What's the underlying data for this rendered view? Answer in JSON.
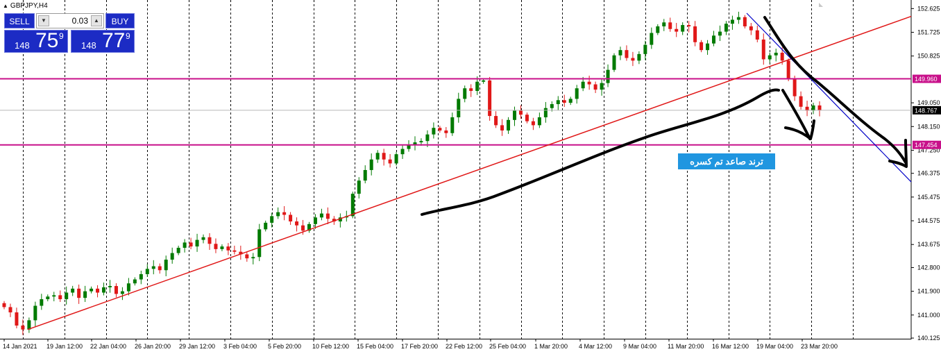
{
  "chart_data": {
    "type": "candlestick",
    "title": "GBPJPY,H4",
    "y_ticks": [
      "152.625",
      "151.725",
      "150.825",
      "149.050",
      "148.150",
      "147.250",
      "146.375",
      "145.475",
      "144.575",
      "143.675",
      "142.800",
      "141.900",
      "141.000",
      "140.125"
    ],
    "x_ticks": [
      "14 Jan 2021",
      "19 Jan 12:00",
      "22 Jan 04:00",
      "26 Jan 20:00",
      "29 Jan 12:00",
      "3 Feb 04:00",
      "5 Feb 20:00",
      "10 Feb 12:00",
      "15 Feb 04:00",
      "17 Feb 20:00",
      "22 Feb 12:00",
      "25 Feb 04:00",
      "1 Mar 20:00",
      "4 Mar 12:00",
      "9 Mar 04:00",
      "11 Mar 20:00",
      "16 Mar 12:00",
      "19 Mar 04:00",
      "23 Mar 20:00"
    ],
    "ylim": [
      140.1,
      152.95
    ],
    "series_close": [
      141.3,
      141.1,
      140.6,
      140.45,
      140.8,
      141.35,
      141.6,
      141.7,
      141.75,
      141.6,
      141.85,
      142.0,
      141.65,
      141.9,
      142.0,
      141.85,
      142.05,
      142.1,
      141.8,
      141.9,
      142.2,
      142.35,
      142.55,
      142.75,
      142.85,
      142.7,
      143.1,
      143.35,
      143.55,
      143.75,
      143.6,
      143.85,
      143.95,
      143.7,
      143.5,
      143.6,
      143.45,
      143.4,
      143.3,
      143.15,
      143.2,
      144.25,
      144.5,
      144.75,
      144.9,
      144.8,
      144.55,
      144.4,
      144.2,
      144.45,
      144.7,
      144.85,
      144.65,
      144.55,
      144.7,
      144.75,
      145.6,
      146.1,
      146.5,
      146.9,
      147.15,
      146.9,
      146.75,
      147.1,
      147.3,
      147.45,
      147.55,
      147.6,
      147.85,
      148.1,
      148.0,
      147.9,
      148.5,
      149.2,
      149.6,
      149.5,
      149.85,
      149.9,
      148.55,
      148.2,
      148.0,
      148.4,
      148.75,
      148.6,
      148.35,
      148.2,
      148.5,
      148.85,
      149.0,
      149.15,
      149.05,
      149.2,
      149.6,
      149.85,
      149.75,
      149.55,
      149.8,
      150.3,
      150.85,
      151.05,
      150.75,
      150.65,
      150.9,
      151.25,
      151.7,
      151.95,
      152.1,
      151.85,
      151.75,
      152.0,
      151.95,
      151.35,
      151.05,
      151.3,
      151.6,
      151.75,
      152.05,
      152.2,
      152.3,
      151.95,
      151.8,
      151.45,
      150.7,
      150.85,
      150.95,
      150.65,
      149.95,
      149.3,
      148.9,
      148.75,
      148.95,
      148.767
    ],
    "prices": {
      "bid_small": "148",
      "bid_big": "75",
      "bid_sup": "9",
      "ask_small": "148",
      "ask_big": "77",
      "ask_sup": "9",
      "lot": "0.03"
    },
    "h_levels": [
      {
        "value": 149.96,
        "label": "149.960"
      },
      {
        "value": 147.454,
        "label": "147.454"
      }
    ],
    "current_price": {
      "value": 148.767,
      "label": "148.767"
    },
    "colors": {
      "up": "#007a00",
      "down": "#e01818",
      "trendline": "#e01818",
      "channel": "#0000c8",
      "level": "#c8108a",
      "grid": "#000000"
    }
  },
  "ui": {
    "sell_label": "SELL",
    "buy_label": "BUY",
    "annotation_text": "ترند صاعد تم كسره",
    "icons": [
      "chevron-down-icon",
      "chevron-up-icon",
      "collapse-triangle-icon"
    ]
  }
}
